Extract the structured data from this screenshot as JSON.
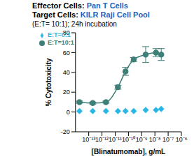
{
  "chart_data": {
    "type": "line",
    "title": "Effector Cells: Pan T Cells",
    "subtitle": "Target Cells: KILR Raji Cell Pool",
    "annotations": [
      "(E:T= 10:1); 24h incubation"
    ],
    "x_label": "[Blinatumomab], g/mL",
    "y_label": "% Cytotoxicity",
    "log": "x",
    "xlim": [
      1e-14,
      1e-06
    ],
    "xticks": [
      {
        "value": 1e-13,
        "label": "10⁻¹³"
      },
      {
        "value": 1e-12,
        "label": "10⁻¹²"
      },
      {
        "value": 1e-11,
        "label": "10⁻¹¹"
      },
      {
        "value": 1e-10,
        "label": "10⁻¹⁰"
      },
      {
        "value": 1e-09,
        "label": "10⁻⁹"
      },
      {
        "value": 1e-08,
        "label": "10⁻⁸"
      },
      {
        "value": 1e-07,
        "label": "10⁻⁷"
      },
      {
        "value": 1e-06,
        "label": "10⁻⁶"
      }
    ],
    "ylim": [
      -20,
      80
    ],
    "yticks": [
      -20,
      0,
      20,
      40,
      60,
      80
    ],
    "legend": "upper left",
    "grid": false,
    "x": [
      2e-14,
      2e-13,
      2e-12,
      1.6e-11,
      6e-11,
      2.5e-10,
      2e-09,
      1.2e-08,
      3e-08
    ],
    "series": [
      {
        "name": "E:T=0:1",
        "type": "scatter",
        "marker": "diamond",
        "color": "#2bb7e6",
        "values": [
          1,
          1,
          1,
          1,
          1,
          1,
          2,
          2,
          3
        ]
      },
      {
        "name": "E:T=10:1",
        "type": "line",
        "marker": "circle",
        "color": "#3e7f78",
        "values": [
          10,
          9,
          10,
          25,
          41,
          53,
          58,
          60,
          58
        ],
        "error": [
          1,
          1,
          1,
          2,
          4,
          2,
          8,
          4,
          6
        ]
      }
    ]
  }
}
